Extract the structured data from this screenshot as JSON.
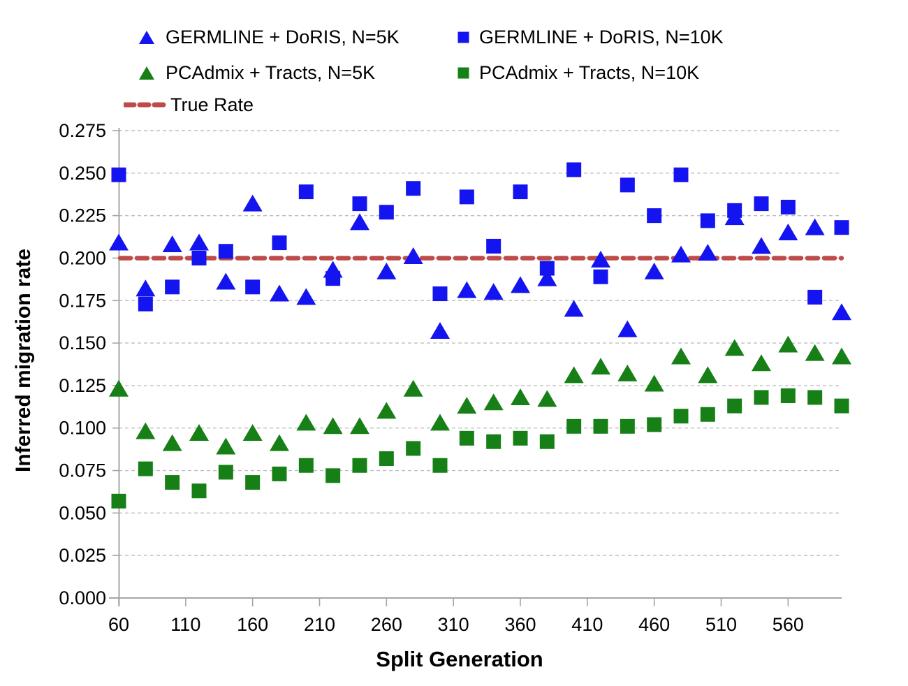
{
  "chart_data": {
    "type": "scatter",
    "title": "",
    "xlabel": "Split Generation",
    "ylabel": "Inferred migration rate",
    "xlim": [
      60,
      600
    ],
    "ylim": [
      0.0,
      0.275
    ],
    "xticks": [
      60,
      110,
      160,
      210,
      260,
      310,
      360,
      410,
      460,
      510,
      560
    ],
    "yticks": [
      0.0,
      0.025,
      0.05,
      0.075,
      0.1,
      0.125,
      0.15,
      0.175,
      0.2,
      0.225,
      0.25,
      0.275
    ],
    "ytick_labels": [
      "0.000",
      "0.025",
      "0.050",
      "0.075",
      "0.100",
      "0.125",
      "0.150",
      "0.175",
      "0.200",
      "0.225",
      "0.250",
      "0.275"
    ],
    "grid": "horizontal dashed gridlines",
    "legend_position": "top, two columns",
    "x": [
      60,
      80,
      100,
      120,
      140,
      160,
      180,
      200,
      220,
      240,
      260,
      280,
      300,
      320,
      340,
      360,
      380,
      400,
      420,
      440,
      460,
      480,
      500,
      520,
      540,
      560,
      580,
      600
    ],
    "series": [
      {
        "name": "GERMLINE + DoRIS, N=5K",
        "marker": "triangle",
        "color": "#1414F0",
        "values": [
          0.209,
          0.182,
          0.208,
          0.209,
          0.186,
          0.232,
          0.179,
          0.177,
          0.193,
          0.221,
          0.192,
          0.201,
          0.157,
          0.181,
          0.18,
          0.184,
          0.188,
          0.17,
          0.199,
          0.158,
          0.192,
          0.202,
          0.203,
          0.224,
          0.207,
          0.215,
          0.218,
          0.168
        ]
      },
      {
        "name": "GERMLINE + DoRIS, N=10K",
        "marker": "square",
        "color": "#1414F0",
        "values": [
          0.249,
          0.173,
          0.183,
          0.2,
          0.204,
          0.183,
          0.209,
          0.239,
          0.188,
          0.232,
          0.227,
          0.241,
          0.179,
          0.236,
          0.207,
          0.239,
          0.194,
          0.252,
          0.189,
          0.243,
          0.225,
          0.249,
          0.222,
          0.228,
          0.232,
          0.23,
          0.177,
          0.218
        ]
      },
      {
        "name": "PCAdmix + Tracts, N=5K",
        "marker": "triangle",
        "color": "#168016",
        "values": [
          0.123,
          0.098,
          0.091,
          0.097,
          0.089,
          0.097,
          0.091,
          0.103,
          0.101,
          0.101,
          0.11,
          0.123,
          0.103,
          0.113,
          0.115,
          0.118,
          0.117,
          0.131,
          0.136,
          0.132,
          0.126,
          0.142,
          0.131,
          0.147,
          0.138,
          0.149,
          0.144,
          0.142
        ]
      },
      {
        "name": "PCAdmix + Tracts, N=10K",
        "marker": "square",
        "color": "#168016",
        "values": [
          0.057,
          0.076,
          0.068,
          0.063,
          0.074,
          0.068,
          0.073,
          0.078,
          0.072,
          0.078,
          0.082,
          0.088,
          0.078,
          0.094,
          0.092,
          0.094,
          0.092,
          0.101,
          0.101,
          0.101,
          0.102,
          0.107,
          0.108,
          0.113,
          0.118,
          0.119,
          0.118,
          0.113
        ]
      }
    ],
    "true_rate": {
      "label": "True Rate",
      "value": 0.2,
      "color": "#BE4B48"
    }
  },
  "colors": {
    "blue": "#1414F0",
    "green": "#168016",
    "true_rate": "#BE4B48",
    "gridline": "#BFBFBF",
    "axis": "#A6A6A6",
    "text": "#000000",
    "background": "#FFFFFF"
  }
}
